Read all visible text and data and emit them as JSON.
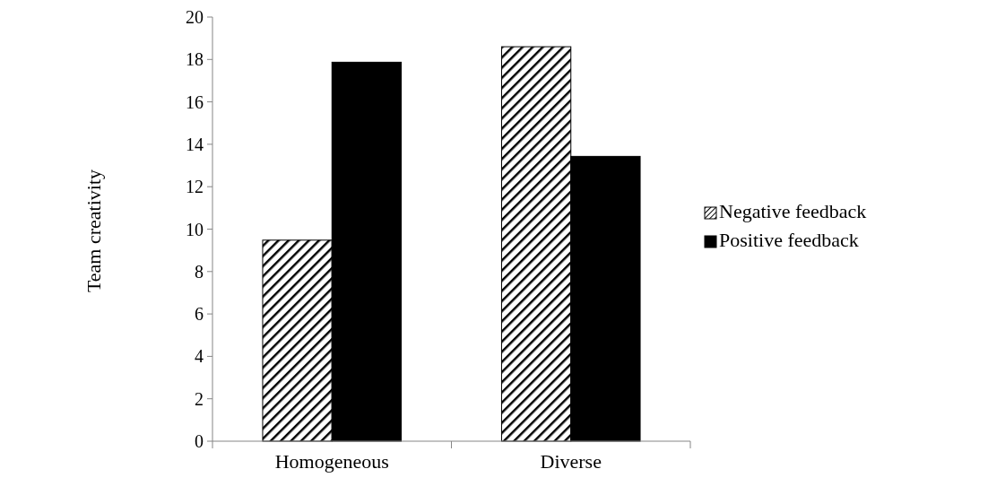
{
  "chart_data": {
    "type": "bar",
    "ylabel": "Team creativity",
    "categories": [
      "Homogeneous",
      "Diverse"
    ],
    "series": [
      {
        "name": "Negative feedback",
        "color": "#000000",
        "values": [
          9.48,
          18.6
        ]
      },
      {
        "name": "Positive feedback",
        "color": "#000000",
        "values": [
          17.87,
          13.43
        ]
      }
    ],
    "ylim": [
      0,
      20
    ],
    "yticks": [
      0,
      2,
      4,
      6,
      8,
      10,
      12,
      14,
      16,
      18,
      20
    ],
    "legend": "right",
    "grid": false
  }
}
